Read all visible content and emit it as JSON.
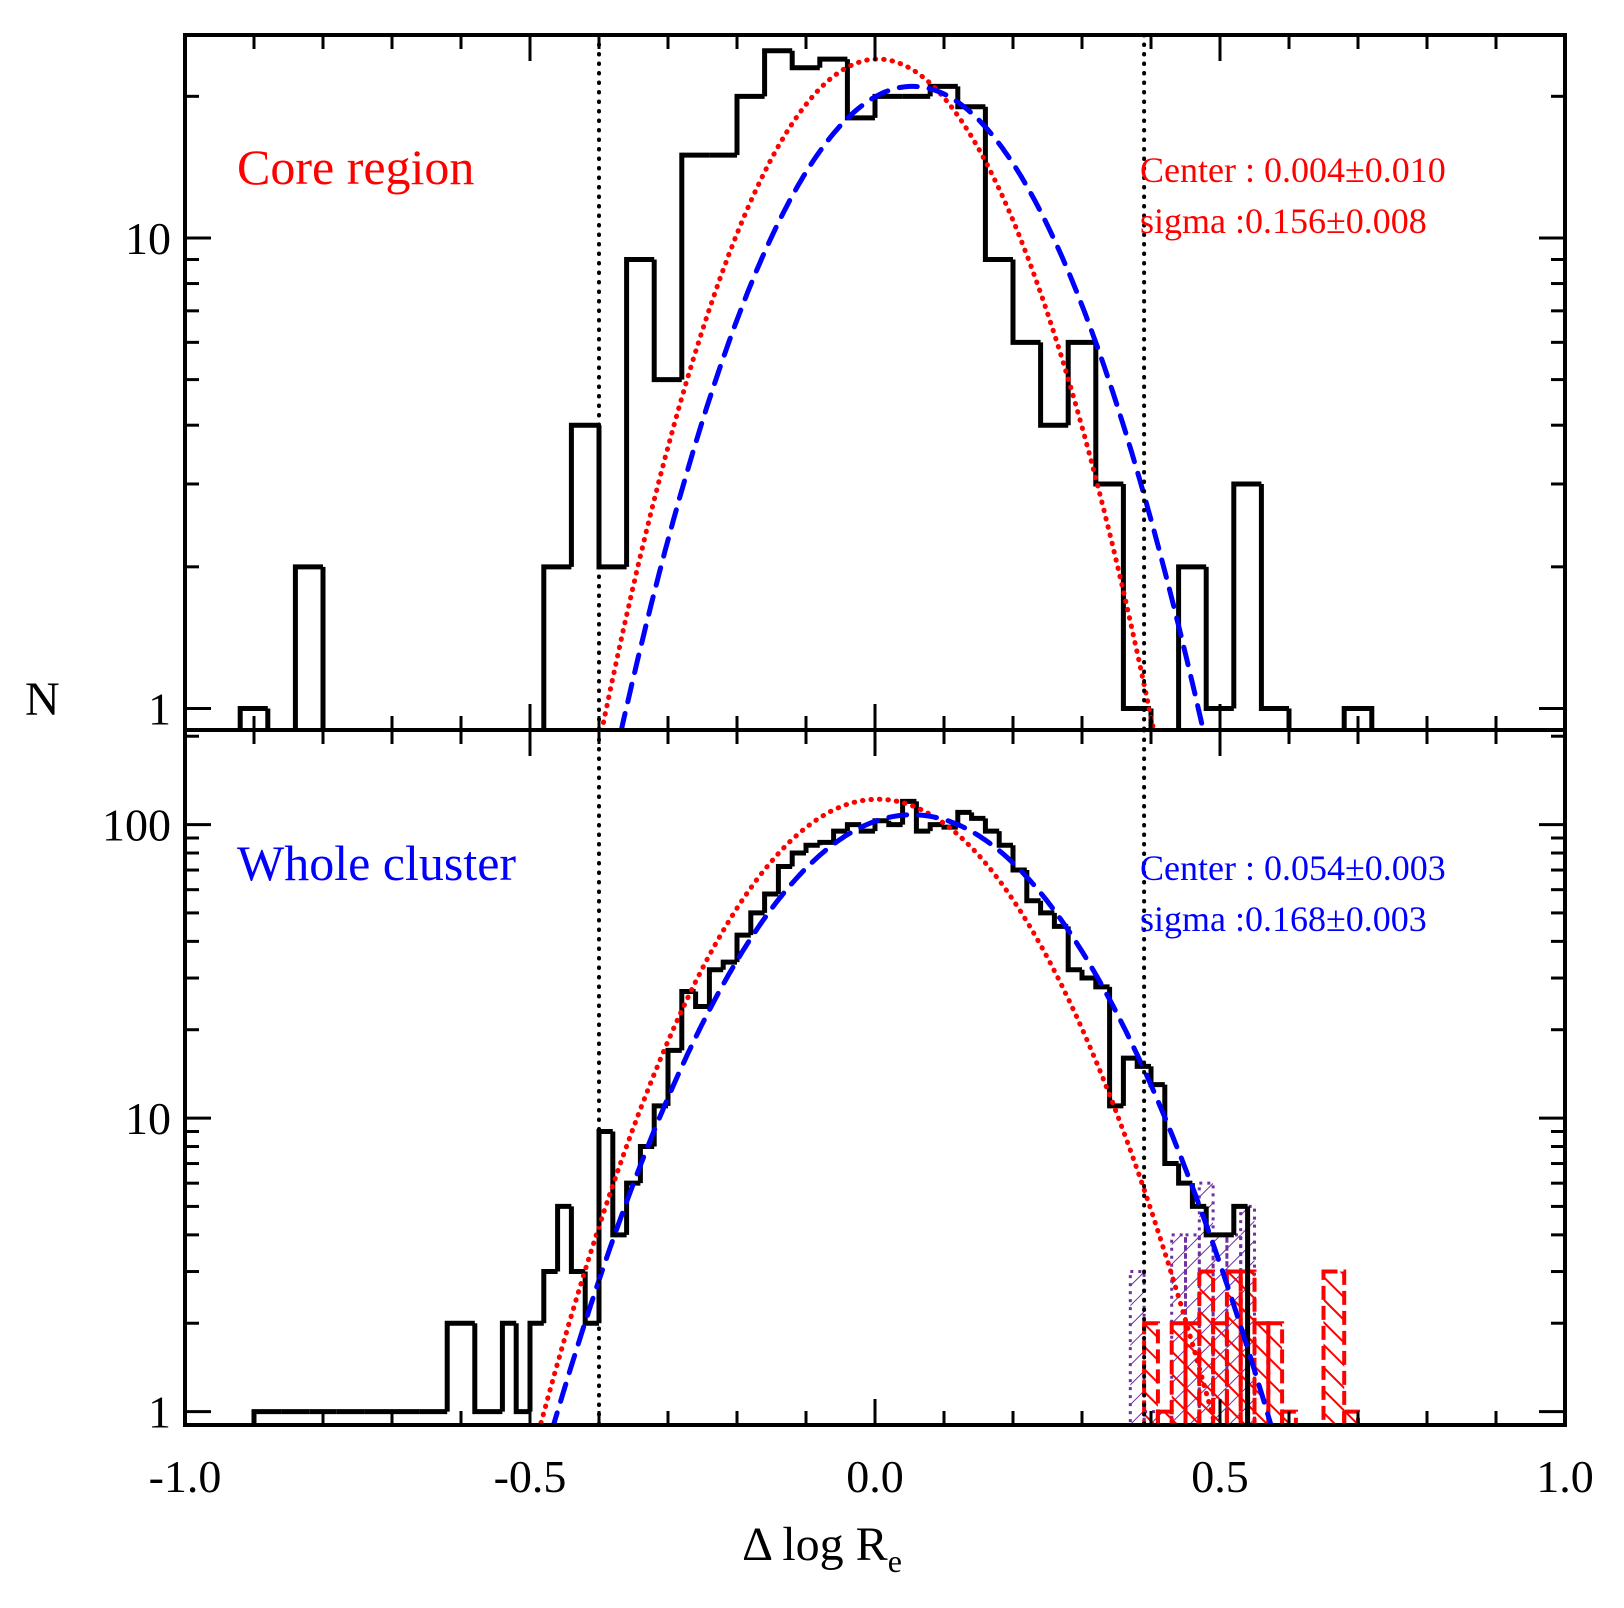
{
  "chart_data": {
    "type": "histogram",
    "xlabel_prefix": "Δ log R",
    "xlabel_subscript": "e",
    "ylabel": "N",
    "xlim": [
      -1.0,
      1.0
    ],
    "x_ticks": [
      -1.0,
      -0.5,
      0.0,
      0.5,
      1.0
    ],
    "x_tick_labels": [
      "-1.0",
      "-0.5",
      "0.0",
      "0.5",
      "1.0"
    ],
    "bin_width": 0.04,
    "vertical_lines": [
      -0.4,
      0.39
    ],
    "colors": {
      "core": "#ff0000",
      "whole": "#0000ff",
      "purple": "#7030a0",
      "axis": "#000000"
    },
    "panels": [
      {
        "name": "core",
        "label": "Core region",
        "label_color": "#ff0000",
        "stats_lines": [
          "Center : 0.004±0.010",
          "sigma :0.156±0.008"
        ],
        "stats_color": "#ff0000",
        "ylim": [
          0.9,
          27
        ],
        "y_ticks": [
          1,
          10
        ],
        "y_tick_labels": [
          "1",
          "10"
        ],
        "hist_edges": [
          -0.92,
          -0.88,
          -0.84,
          -0.8,
          -0.76,
          -0.72,
          -0.68,
          -0.64,
          -0.6,
          -0.56,
          -0.52,
          -0.48,
          -0.44,
          -0.4,
          -0.36,
          -0.32,
          -0.28,
          -0.24,
          -0.2,
          -0.16,
          -0.12,
          -0.08,
          -0.04,
          0.0,
          0.04,
          0.08,
          0.12,
          0.16,
          0.2,
          0.24,
          0.28,
          0.32,
          0.36,
          0.4,
          0.44,
          0.48,
          0.52,
          0.56,
          0.6,
          0.64,
          0.68,
          0.72
        ],
        "hist_counts": [
          1,
          0,
          2,
          0,
          0,
          0,
          0,
          0,
          0,
          0,
          0,
          2,
          4,
          2,
          9,
          5,
          15,
          15,
          20,
          25,
          23,
          24,
          18,
          20,
          20,
          21,
          19,
          9,
          6,
          4,
          6,
          3,
          1,
          0,
          2,
          1,
          3,
          1,
          0,
          0,
          1
        ],
        "gauss_core": {
          "center": 0.004,
          "sigma": 0.156,
          "amplitude": 24
        },
        "gauss_whole": {
          "center": 0.054,
          "sigma": 0.168,
          "amplitude": 21
        }
      },
      {
        "name": "whole",
        "label": "Whole cluster",
        "label_color": "#0000ff",
        "stats_lines": [
          "Center : 0.054±0.003",
          "sigma :0.168±0.003"
        ],
        "stats_color": "#0000ff",
        "ylim": [
          0.9,
          210
        ],
        "y_ticks": [
          1,
          10,
          100
        ],
        "y_tick_labels": [
          "1",
          "10",
          "100"
        ],
        "hist_edges": [
          -0.9,
          -0.86,
          -0.82,
          -0.78,
          -0.74,
          -0.7,
          -0.66,
          -0.62,
          -0.58,
          -0.54,
          -0.52,
          -0.5,
          -0.48,
          -0.46,
          -0.44,
          -0.42,
          -0.4,
          -0.38,
          -0.36,
          -0.34,
          -0.32,
          -0.3,
          -0.28,
          -0.26,
          -0.24,
          -0.22,
          -0.2,
          -0.18,
          -0.16,
          -0.14,
          -0.12,
          -0.1,
          -0.08,
          -0.06,
          -0.04,
          -0.02,
          0.0,
          0.02,
          0.04,
          0.06,
          0.08,
          0.1,
          0.12,
          0.14,
          0.16,
          0.18,
          0.2,
          0.22,
          0.24,
          0.26,
          0.28,
          0.3,
          0.32,
          0.34,
          0.36,
          0.38,
          0.4,
          0.42,
          0.44,
          0.46,
          0.48,
          0.5,
          0.52,
          0.54,
          0.56,
          0.6,
          0.64,
          0.68,
          0.7,
          0.74
        ],
        "hist_counts": [
          1,
          1,
          1,
          1,
          1,
          1,
          1,
          2,
          1,
          2,
          1,
          2,
          3,
          5,
          3,
          2,
          9,
          4,
          6,
          8,
          11,
          17,
          27,
          24,
          32,
          34,
          42,
          50,
          58,
          72,
          80,
          85,
          87,
          95,
          100,
          95,
          103,
          100,
          120,
          95,
          100,
          98,
          110,
          105,
          95,
          85,
          70,
          55,
          50,
          45,
          32,
          30,
          28,
          11,
          16,
          15,
          13,
          7,
          6,
          5,
          4,
          4,
          5,
          0,
          0,
          0,
          0,
          0,
          0
        ],
        "hatched_purple": {
          "edges": [
            0.37,
            0.39,
            0.43,
            0.45,
            0.47,
            0.49,
            0.51,
            0.53,
            0.55
          ],
          "counts": [
            3,
            1,
            4,
            4,
            6,
            4,
            4,
            5
          ]
        },
        "hatched_red": {
          "edges": [
            0.39,
            0.41,
            0.43,
            0.45,
            0.47,
            0.49,
            0.51,
            0.53,
            0.55,
            0.57,
            0.59,
            0.61,
            0.65,
            0.68,
            0.7,
            0.74
          ],
          "counts": [
            2,
            1,
            2,
            2,
            3,
            2,
            3,
            3,
            2,
            2,
            1,
            0,
            3,
            1,
            0
          ]
        },
        "gauss_core": {
          "center": 0.004,
          "sigma": 0.156,
          "amplitude": 122
        },
        "gauss_whole": {
          "center": 0.054,
          "sigma": 0.168,
          "amplitude": 108
        }
      }
    ]
  }
}
